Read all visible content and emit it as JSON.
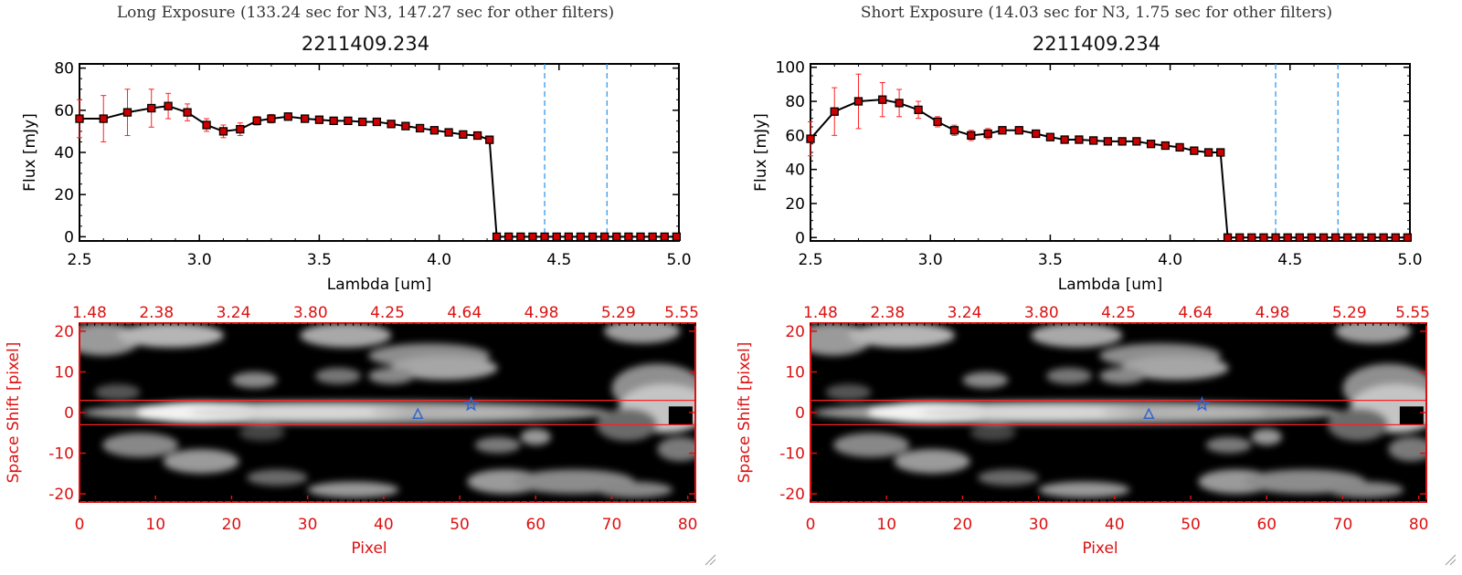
{
  "panels": [
    {
      "exposure_title": "Long Exposure (133.24 sec for N3, 147.27 sec for other filters)",
      "object_title": "2211409.234"
    },
    {
      "exposure_title": "Short Exposure (14.03 sec for N3, 1.75 sec for other filters)",
      "object_title": "2211409.234"
    }
  ],
  "chart_data": [
    {
      "type": "line",
      "title": "2211409.234",
      "xlabel": "Lambda [um]",
      "ylabel": "Flux [mJy]",
      "xlim": [
        2.5,
        5.0
      ],
      "ylim": [
        -2,
        82
      ],
      "xticks": [
        "2.5",
        "3.0",
        "3.5",
        "4.0",
        "4.5",
        "5.0"
      ],
      "yticks": [
        "0",
        "20",
        "40",
        "60",
        "80"
      ],
      "x": [
        2.5,
        2.6,
        2.7,
        2.8,
        2.87,
        2.95,
        3.03,
        3.1,
        3.17,
        3.24,
        3.3,
        3.37,
        3.44,
        3.5,
        3.56,
        3.62,
        3.68,
        3.74,
        3.8,
        3.86,
        3.92,
        3.98,
        4.04,
        4.1,
        4.16,
        4.21,
        4.24,
        4.29,
        4.34,
        4.39,
        4.44,
        4.49,
        4.54,
        4.59,
        4.64,
        4.69,
        4.74,
        4.79,
        4.84,
        4.89,
        4.94,
        4.99
      ],
      "values": [
        56,
        56,
        59,
        61,
        62,
        59,
        53,
        50,
        51,
        55,
        56,
        57,
        56,
        55.5,
        55,
        55,
        54.5,
        54.5,
        53.5,
        52.5,
        51.5,
        50.5,
        49.5,
        48.5,
        48,
        46,
        0,
        0,
        0,
        0,
        0,
        0,
        0,
        0,
        0,
        0,
        0,
        0,
        0,
        0,
        0,
        0
      ],
      "errors": [
        9,
        11,
        11,
        9,
        6,
        4,
        3,
        3,
        3,
        2,
        2,
        1,
        1,
        0.5,
        0.5,
        0.5,
        0.5,
        0.5,
        0.5,
        0.5,
        0.5,
        0.5,
        0.5,
        0.5,
        0.5,
        0.5,
        0,
        0,
        0,
        0,
        0,
        0,
        0,
        0,
        0,
        0,
        0,
        0,
        0,
        0,
        0,
        0
      ],
      "vlines": [
        4.44,
        4.7
      ],
      "zero_line": 0
    },
    {
      "type": "line",
      "title": "2211409.234",
      "xlabel": "Lambda [um]",
      "ylabel": "Flux [mJy]",
      "xlim": [
        2.5,
        5.0
      ],
      "ylim": [
        -2,
        102
      ],
      "xticks": [
        "2.5",
        "3.0",
        "3.5",
        "4.0",
        "4.5",
        "5.0"
      ],
      "yticks": [
        "0",
        "20",
        "40",
        "60",
        "80",
        "100"
      ],
      "x": [
        2.5,
        2.6,
        2.7,
        2.8,
        2.87,
        2.95,
        3.03,
        3.1,
        3.17,
        3.24,
        3.3,
        3.37,
        3.44,
        3.5,
        3.56,
        3.62,
        3.68,
        3.74,
        3.8,
        3.86,
        3.92,
        3.98,
        4.04,
        4.1,
        4.16,
        4.21,
        4.24,
        4.29,
        4.34,
        4.39,
        4.44,
        4.49,
        4.54,
        4.59,
        4.64,
        4.69,
        4.74,
        4.79,
        4.84,
        4.89,
        4.94,
        4.99
      ],
      "values": [
        58,
        74,
        80,
        81,
        79,
        75,
        68,
        63,
        60,
        61,
        63,
        63,
        61,
        59,
        57.5,
        57.5,
        57,
        56.5,
        56.5,
        56.5,
        55,
        54,
        53,
        51,
        50,
        50,
        0,
        0,
        0,
        0,
        0,
        0,
        0,
        0,
        0,
        0,
        0,
        0,
        0,
        0,
        0,
        0
      ],
      "errors": [
        10,
        14,
        16,
        10,
        8,
        5,
        3,
        3,
        3,
        3,
        2,
        1,
        1,
        1,
        0.5,
        0.5,
        0.5,
        0.5,
        0.5,
        0.5,
        0.5,
        0.5,
        0.5,
        0.5,
        0.5,
        0.5,
        0,
        0,
        0,
        0,
        0,
        0,
        0,
        0,
        0,
        0,
        0,
        0,
        0,
        0,
        0,
        0
      ],
      "vlines": [
        4.44,
        4.7
      ],
      "zero_line": 0
    },
    {
      "type": "heatmap",
      "xlabel": "Pixel",
      "ylabel": "Space Shift [pixel]",
      "xlim": [
        0,
        81
      ],
      "ylim": [
        -22,
        22
      ],
      "xticks": [
        "0",
        "10",
        "20",
        "30",
        "40",
        "50",
        "60",
        "70",
        "80"
      ],
      "yticks": [
        "-20",
        "-10",
        "0",
        "10",
        "20"
      ],
      "top_axis_ticks": [
        "1.48",
        "2.38",
        "3.24",
        "3.80",
        "4.25",
        "4.64",
        "4.98",
        "5.29",
        "5.55"
      ],
      "aperture_lines": [
        3,
        -3
      ],
      "markers": [
        {
          "shape": "triangle",
          "x": 44.5,
          "y": -0.5
        },
        {
          "shape": "star",
          "x": 51.5,
          "y": 2
        }
      ]
    },
    {
      "type": "heatmap",
      "xlabel": "Pixel",
      "ylabel": "Space Shift [pixel]",
      "xlim": [
        0,
        81
      ],
      "ylim": [
        -22,
        22
      ],
      "xticks": [
        "0",
        "10",
        "20",
        "30",
        "40",
        "50",
        "60",
        "70",
        "80"
      ],
      "yticks": [
        "-20",
        "-10",
        "0",
        "10",
        "20"
      ],
      "top_axis_ticks": [
        "1.48",
        "2.38",
        "3.24",
        "3.80",
        "4.25",
        "4.64",
        "4.98",
        "5.29",
        "5.55"
      ],
      "aperture_lines": [
        3,
        -3
      ],
      "markers": [
        {
          "shape": "triangle",
          "x": 44.5,
          "y": -0.5
        },
        {
          "shape": "star",
          "x": 51.5,
          "y": 2
        }
      ]
    }
  ],
  "colors": {
    "axis_black": "#000000",
    "axis_red": "#dd1111",
    "marker_fill": "#cc0000",
    "error_bar": "#ff2222",
    "vline": "#3399ee",
    "aperture": "#ff2020",
    "image_marker": "#3366cc"
  }
}
